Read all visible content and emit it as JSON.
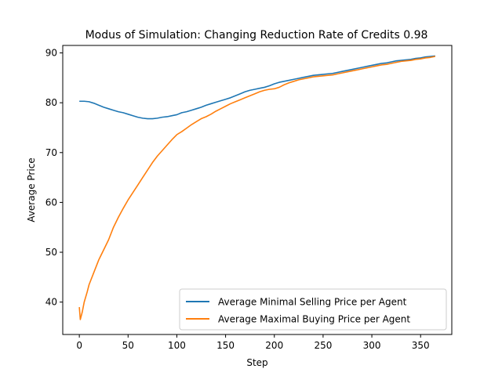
{
  "chart_data": {
    "type": "line",
    "title": "Modus of Simulation: Changing Reduction Rate of Credits 0.98",
    "xlabel": "Step",
    "ylabel": "Average Price",
    "xlim": [
      -17,
      382
    ],
    "ylim": [
      33.5,
      91.5
    ],
    "xticks": [
      0,
      50,
      100,
      150,
      200,
      250,
      300,
      350
    ],
    "yticks": [
      40,
      50,
      60,
      70,
      80,
      90
    ],
    "legend_position": "lower-right",
    "grid": false,
    "series": [
      {
        "name": "Average Minimal Selling Price per Agent",
        "color": "#1f77b4",
        "points": [
          [
            0,
            80.3
          ],
          [
            5,
            80.3
          ],
          [
            10,
            80.2
          ],
          [
            15,
            79.9
          ],
          [
            20,
            79.5
          ],
          [
            25,
            79.1
          ],
          [
            30,
            78.8
          ],
          [
            35,
            78.5
          ],
          [
            40,
            78.2
          ],
          [
            45,
            78.0
          ],
          [
            50,
            77.7
          ],
          [
            55,
            77.4
          ],
          [
            60,
            77.1
          ],
          [
            65,
            76.9
          ],
          [
            70,
            76.8
          ],
          [
            75,
            76.8
          ],
          [
            80,
            76.9
          ],
          [
            85,
            77.1
          ],
          [
            90,
            77.2
          ],
          [
            95,
            77.4
          ],
          [
            100,
            77.6
          ],
          [
            105,
            78.0
          ],
          [
            110,
            78.2
          ],
          [
            115,
            78.5
          ],
          [
            120,
            78.8
          ],
          [
            125,
            79.1
          ],
          [
            130,
            79.5
          ],
          [
            135,
            79.8
          ],
          [
            140,
            80.1
          ],
          [
            145,
            80.4
          ],
          [
            150,
            80.7
          ],
          [
            155,
            81.0
          ],
          [
            160,
            81.4
          ],
          [
            165,
            81.8
          ],
          [
            170,
            82.2
          ],
          [
            175,
            82.5
          ],
          [
            180,
            82.7
          ],
          [
            185,
            82.9
          ],
          [
            190,
            83.1
          ],
          [
            195,
            83.4
          ],
          [
            200,
            83.8
          ],
          [
            205,
            84.1
          ],
          [
            210,
            84.3
          ],
          [
            215,
            84.5
          ],
          [
            220,
            84.7
          ],
          [
            225,
            84.9
          ],
          [
            230,
            85.1
          ],
          [
            235,
            85.3
          ],
          [
            240,
            85.5
          ],
          [
            245,
            85.6
          ],
          [
            250,
            85.7
          ],
          [
            255,
            85.8
          ],
          [
            260,
            85.9
          ],
          [
            265,
            86.1
          ],
          [
            270,
            86.3
          ],
          [
            275,
            86.5
          ],
          [
            280,
            86.7
          ],
          [
            285,
            86.9
          ],
          [
            290,
            87.1
          ],
          [
            295,
            87.3
          ],
          [
            300,
            87.5
          ],
          [
            305,
            87.7
          ],
          [
            310,
            87.9
          ],
          [
            315,
            88.0
          ],
          [
            320,
            88.2
          ],
          [
            325,
            88.4
          ],
          [
            330,
            88.5
          ],
          [
            335,
            88.6
          ],
          [
            340,
            88.7
          ],
          [
            345,
            88.9
          ],
          [
            350,
            89.0
          ],
          [
            355,
            89.2
          ],
          [
            360,
            89.3
          ],
          [
            365,
            89.4
          ]
        ]
      },
      {
        "name": "Average Maximal Buying Price per Agent",
        "color": "#ff7f0e",
        "points": [
          [
            0,
            39.0
          ],
          [
            1,
            36.5
          ],
          [
            3,
            38.0
          ],
          [
            5,
            40.0
          ],
          [
            8,
            42.0
          ],
          [
            10,
            43.5
          ],
          [
            15,
            46.0
          ],
          [
            20,
            48.5
          ],
          [
            25,
            50.5
          ],
          [
            30,
            52.5
          ],
          [
            35,
            55.0
          ],
          [
            40,
            57.0
          ],
          [
            45,
            58.8
          ],
          [
            50,
            60.5
          ],
          [
            55,
            62.0
          ],
          [
            60,
            63.5
          ],
          [
            65,
            65.0
          ],
          [
            70,
            66.5
          ],
          [
            75,
            68.0
          ],
          [
            80,
            69.3
          ],
          [
            85,
            70.4
          ],
          [
            90,
            71.5
          ],
          [
            95,
            72.6
          ],
          [
            100,
            73.6
          ],
          [
            105,
            74.2
          ],
          [
            110,
            74.9
          ],
          [
            115,
            75.6
          ],
          [
            120,
            76.2
          ],
          [
            125,
            76.8
          ],
          [
            130,
            77.2
          ],
          [
            135,
            77.7
          ],
          [
            140,
            78.3
          ],
          [
            145,
            78.8
          ],
          [
            150,
            79.3
          ],
          [
            155,
            79.8
          ],
          [
            160,
            80.2
          ],
          [
            165,
            80.6
          ],
          [
            170,
            81.0
          ],
          [
            175,
            81.4
          ],
          [
            180,
            81.8
          ],
          [
            185,
            82.2
          ],
          [
            190,
            82.5
          ],
          [
            195,
            82.7
          ],
          [
            200,
            82.8
          ],
          [
            205,
            83.1
          ],
          [
            210,
            83.6
          ],
          [
            215,
            84.0
          ],
          [
            220,
            84.3
          ],
          [
            225,
            84.6
          ],
          [
            230,
            84.8
          ],
          [
            235,
            85.0
          ],
          [
            240,
            85.2
          ],
          [
            245,
            85.3
          ],
          [
            250,
            85.4
          ],
          [
            255,
            85.5
          ],
          [
            260,
            85.6
          ],
          [
            265,
            85.8
          ],
          [
            270,
            86.0
          ],
          [
            275,
            86.2
          ],
          [
            280,
            86.4
          ],
          [
            285,
            86.6
          ],
          [
            290,
            86.8
          ],
          [
            295,
            87.0
          ],
          [
            300,
            87.2
          ],
          [
            305,
            87.4
          ],
          [
            310,
            87.6
          ],
          [
            315,
            87.7
          ],
          [
            320,
            87.9
          ],
          [
            325,
            88.1
          ],
          [
            330,
            88.3
          ],
          [
            335,
            88.4
          ],
          [
            340,
            88.5
          ],
          [
            345,
            88.7
          ],
          [
            350,
            88.8
          ],
          [
            355,
            89.0
          ],
          [
            360,
            89.1
          ],
          [
            365,
            89.3
          ]
        ]
      }
    ]
  }
}
